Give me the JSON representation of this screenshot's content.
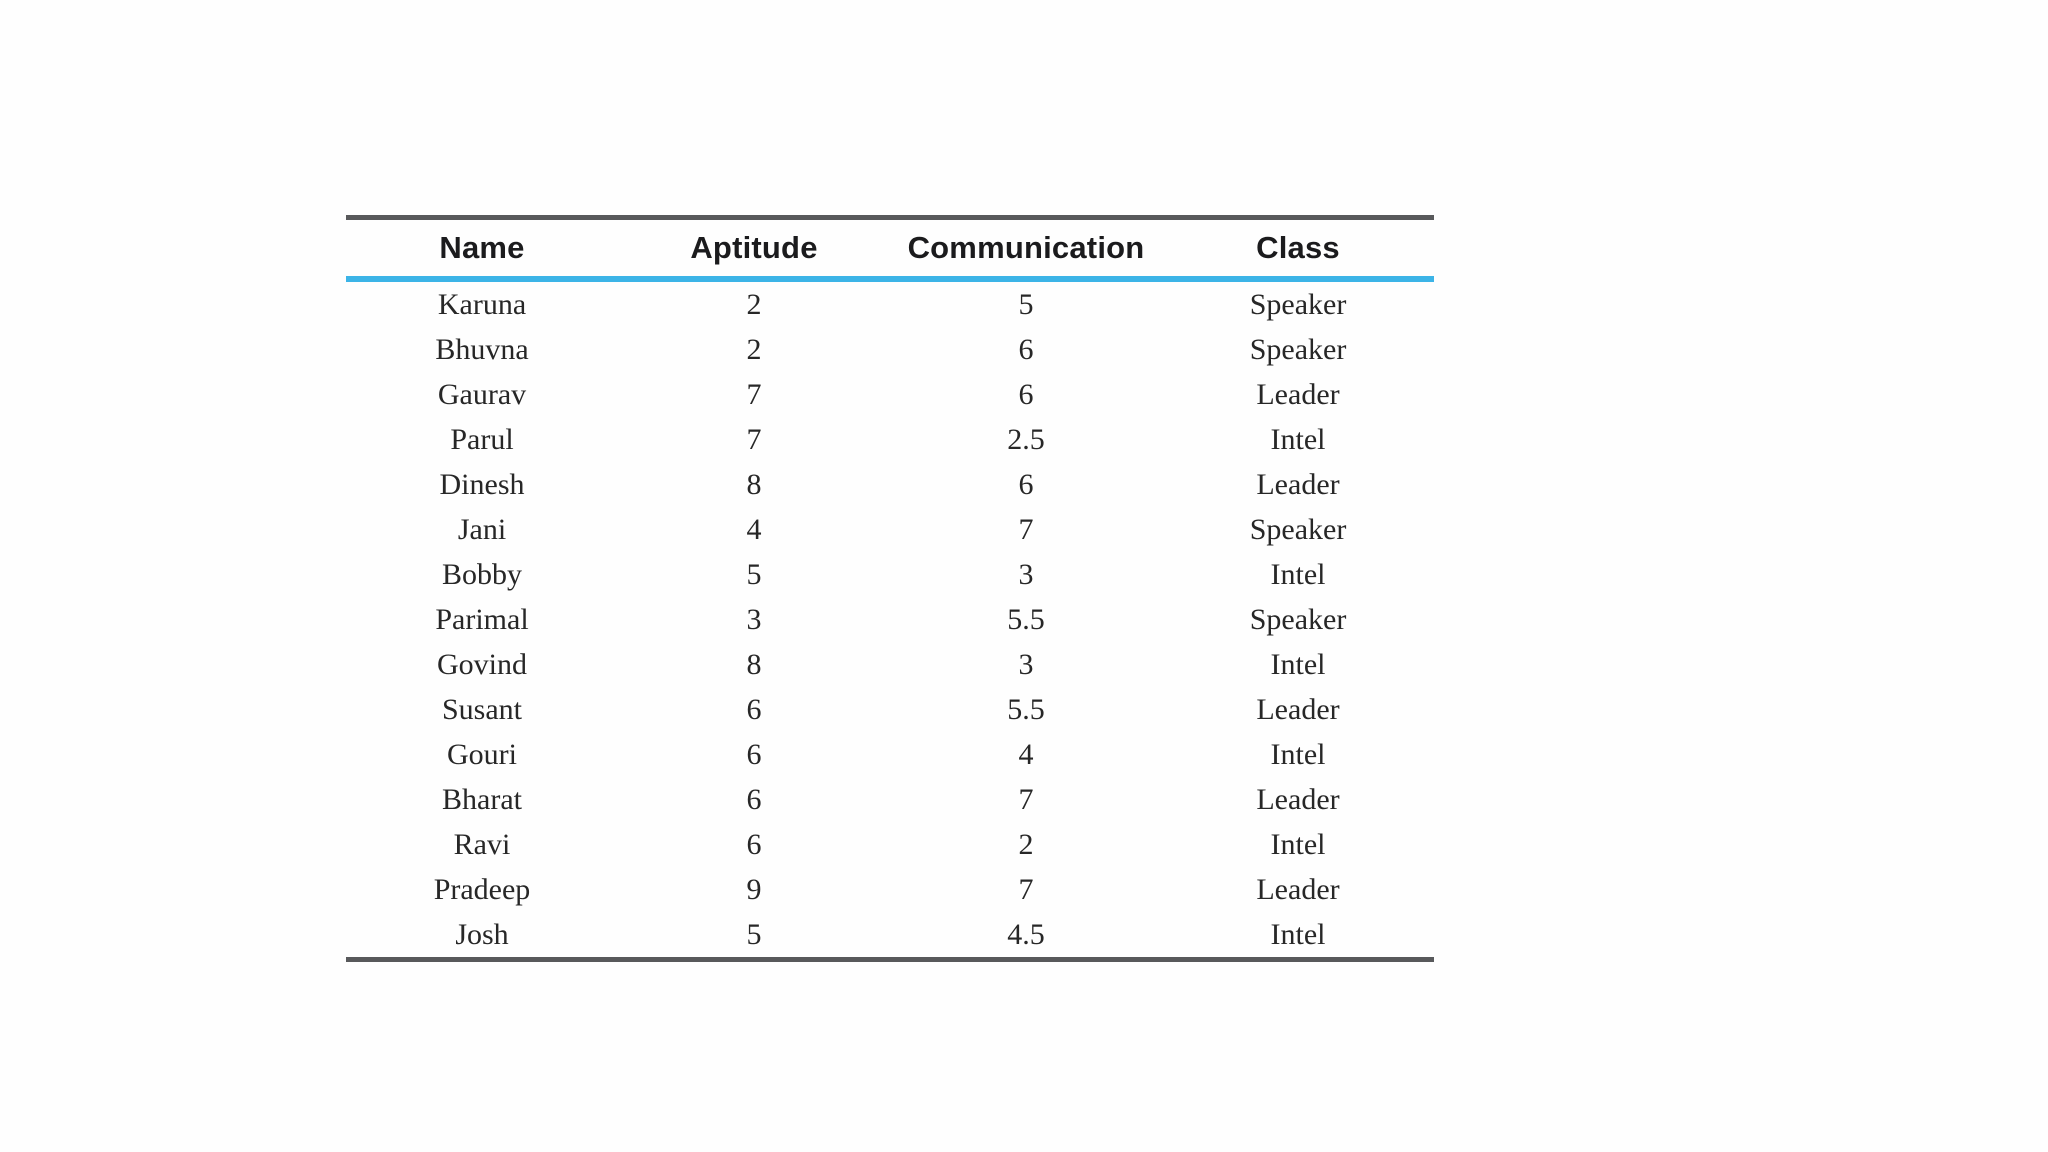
{
  "colors": {
    "accent_blue": "#3cb4e7",
    "border_gray": "#58595b"
  },
  "table": {
    "columns": [
      "Name",
      "Aptitude",
      "Communication",
      "Class"
    ],
    "rows": [
      {
        "name": "Karuna",
        "aptitude": "2",
        "communication": "5",
        "class": "Speaker"
      },
      {
        "name": "Bhuvna",
        "aptitude": "2",
        "communication": "6",
        "class": "Speaker"
      },
      {
        "name": "Gaurav",
        "aptitude": "7",
        "communication": "6",
        "class": "Leader"
      },
      {
        "name": "Parul",
        "aptitude": "7",
        "communication": "2.5",
        "class": "Intel"
      },
      {
        "name": "Dinesh",
        "aptitude": "8",
        "communication": "6",
        "class": "Leader"
      },
      {
        "name": "Jani",
        "aptitude": "4",
        "communication": "7",
        "class": "Speaker"
      },
      {
        "name": "Bobby",
        "aptitude": "5",
        "communication": "3",
        "class": "Intel"
      },
      {
        "name": "Parimal",
        "aptitude": "3",
        "communication": "5.5",
        "class": "Speaker"
      },
      {
        "name": "Govind",
        "aptitude": "8",
        "communication": "3",
        "class": "Intel"
      },
      {
        "name": "Susant",
        "aptitude": "6",
        "communication": "5.5",
        "class": "Leader"
      },
      {
        "name": "Gouri",
        "aptitude": "6",
        "communication": "4",
        "class": "Intel"
      },
      {
        "name": "Bharat",
        "aptitude": "6",
        "communication": "7",
        "class": "Leader"
      },
      {
        "name": "Ravi",
        "aptitude": "6",
        "communication": "2",
        "class": "Intel"
      },
      {
        "name": "Pradeep",
        "aptitude": "9",
        "communication": "7",
        "class": "Leader"
      },
      {
        "name": "Josh",
        "aptitude": "5",
        "communication": "4.5",
        "class": "Intel"
      }
    ]
  }
}
